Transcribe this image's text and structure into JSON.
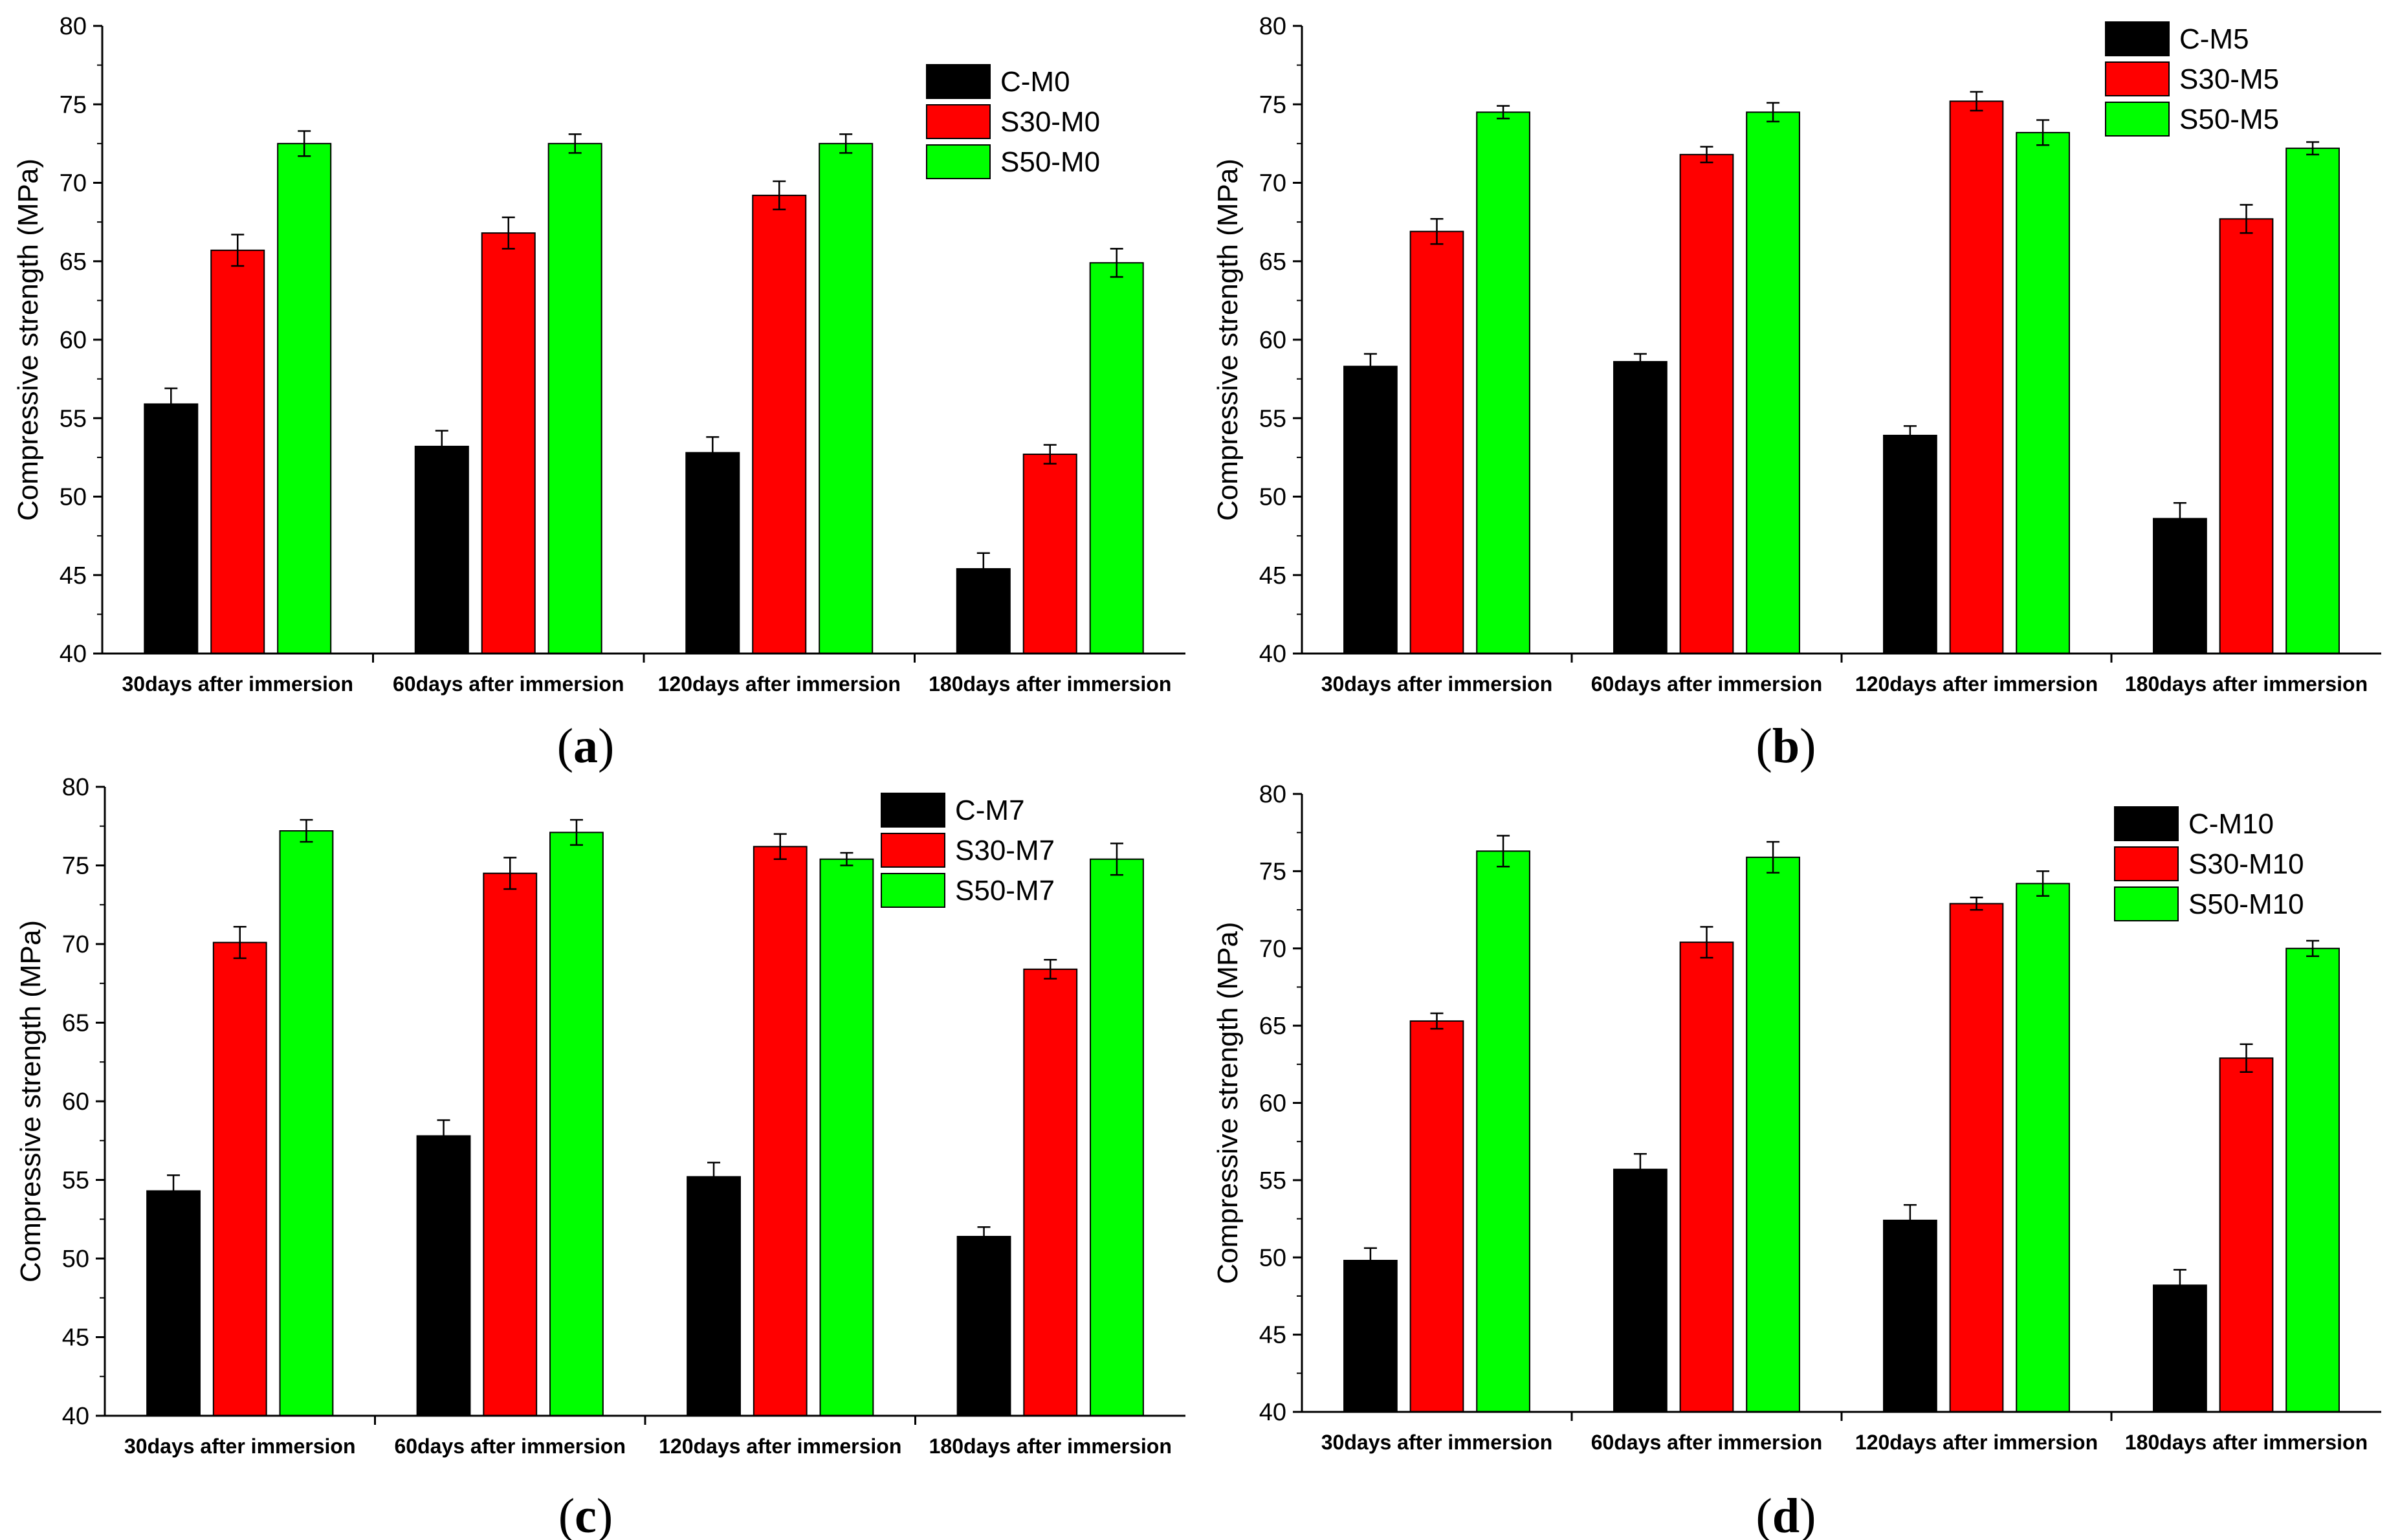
{
  "figure": {
    "colors": {
      "C": "#000000",
      "S30": "#ff0000",
      "S50": "#00ff00",
      "error": "#000000",
      "axis": "#000000"
    },
    "ylabel": "Compressive strength (MPa)",
    "categories": [
      "30days after immersion",
      "60days after immersion",
      "120days after immersion",
      "180days after immersion"
    ],
    "yticks": [
      40,
      45,
      50,
      55,
      60,
      65,
      70,
      75,
      80
    ]
  },
  "chart_data": [
    {
      "type": "bar",
      "panel": "a",
      "caption_letter": "a",
      "title": "",
      "xlabel": "",
      "ylabel": "Compressive strength (MPa)",
      "ylim": [
        40,
        80
      ],
      "legend_position": "top-right",
      "categories": [
        "30days after immersion",
        "60days after immersion",
        "120days after immersion",
        "180days after immersion"
      ],
      "series": [
        {
          "name": "C-M0",
          "color": "#000000",
          "values": [
            55.9,
            53.2,
            52.8,
            45.4
          ],
          "errors": [
            1.0,
            1.0,
            1.0,
            1.0
          ]
        },
        {
          "name": "S30-M0",
          "color": "#ff0000",
          "values": [
            65.7,
            66.8,
            69.2,
            52.7
          ],
          "errors": [
            1.0,
            1.0,
            0.9,
            0.6
          ]
        },
        {
          "name": "S50-M0",
          "color": "#00ff00",
          "values": [
            72.5,
            72.5,
            72.5,
            64.9
          ],
          "errors": [
            0.8,
            0.6,
            0.6,
            0.9
          ]
        }
      ]
    },
    {
      "type": "bar",
      "panel": "b",
      "caption_letter": "b",
      "title": "",
      "xlabel": "",
      "ylabel": "Compressive strength (MPa)",
      "ylim": [
        40,
        80
      ],
      "legend_position": "top-right",
      "categories": [
        "30days after immersion",
        "60days after immersion",
        "120days after immersion",
        "180days after immersion"
      ],
      "series": [
        {
          "name": "C-M5",
          "color": "#000000",
          "values": [
            58.3,
            58.6,
            53.9,
            48.6
          ],
          "errors": [
            0.8,
            0.5,
            0.6,
            1.0
          ]
        },
        {
          "name": "S30-M5",
          "color": "#ff0000",
          "values": [
            66.9,
            71.8,
            75.2,
            67.7
          ],
          "errors": [
            0.8,
            0.5,
            0.6,
            0.9
          ]
        },
        {
          "name": "S50-M5",
          "color": "#00ff00",
          "values": [
            74.5,
            74.5,
            73.2,
            72.2
          ],
          "errors": [
            0.4,
            0.6,
            0.8,
            0.4
          ]
        }
      ]
    },
    {
      "type": "bar",
      "panel": "c",
      "caption_letter": "c",
      "title": "",
      "xlabel": "",
      "ylabel": "Compressive strength (MPa)",
      "ylim": [
        40,
        80
      ],
      "legend_position": "top-right",
      "categories": [
        "30days after immersion",
        "60days after immersion",
        "120days after immersion",
        "180days after immersion"
      ],
      "series": [
        {
          "name": "C-M7",
          "color": "#000000",
          "values": [
            54.3,
            57.8,
            55.2,
            51.4
          ],
          "errors": [
            1.0,
            1.0,
            0.9,
            0.6
          ]
        },
        {
          "name": "S30-M7",
          "color": "#ff0000",
          "values": [
            70.1,
            74.5,
            76.2,
            68.4
          ],
          "errors": [
            1.0,
            1.0,
            0.8,
            0.6
          ]
        },
        {
          "name": "S50-M7",
          "color": "#00ff00",
          "values": [
            77.2,
            77.1,
            75.4,
            75.4
          ],
          "errors": [
            0.7,
            0.8,
            0.4,
            1.0
          ]
        }
      ]
    },
    {
      "type": "bar",
      "panel": "d",
      "caption_letter": "d",
      "title": "",
      "xlabel": "",
      "ylabel": "Compressive strength (MPa)",
      "ylim": [
        40,
        80
      ],
      "legend_position": "top-right",
      "categories": [
        "30days after immersion",
        "60days after immersion",
        "120days after immersion",
        "180days after immersion"
      ],
      "series": [
        {
          "name": "C-M10",
          "color": "#000000",
          "values": [
            49.8,
            55.7,
            52.4,
            48.2
          ],
          "errors": [
            0.8,
            1.0,
            1.0,
            1.0
          ]
        },
        {
          "name": "S30-M10",
          "color": "#ff0000",
          "values": [
            65.3,
            70.4,
            72.9,
            62.9
          ],
          "errors": [
            0.5,
            1.0,
            0.4,
            0.9
          ]
        },
        {
          "name": "S50-M10",
          "color": "#00ff00",
          "values": [
            76.3,
            75.9,
            74.2,
            70.0
          ],
          "errors": [
            1.0,
            1.0,
            0.8,
            0.5
          ]
        }
      ]
    }
  ]
}
